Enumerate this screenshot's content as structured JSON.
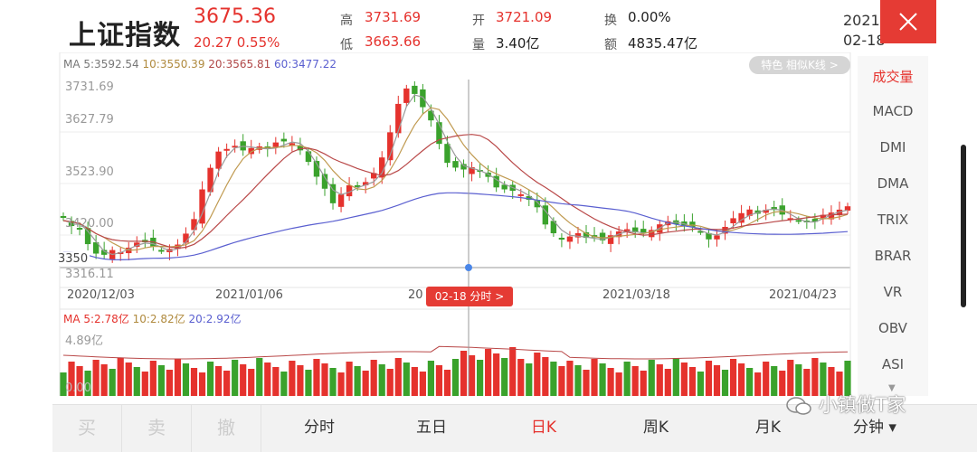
{
  "header": {
    "title": "上证指数",
    "price": "3675.36",
    "change": "20.27  0.55%",
    "high_label": "高",
    "high_value": "3731.69",
    "low_label": "低",
    "low_value": "3663.66",
    "open_label": "开",
    "open_value": "3721.09",
    "volume_label": "量",
    "volume_value": "3.40亿",
    "turnover_label": "换",
    "turnover_value": "0.00%",
    "amount_label": "额",
    "amount_value": "4835.47亿",
    "date_year": "2021",
    "date_md": "02-18"
  },
  "chart": {
    "ma_title": "MA 5:3592.54",
    "ma10": "10:3550.39",
    "ma20": "20:3565.81",
    "ma60": "60:3477.22",
    "feature_pill": "特色 相似K线 >",
    "y_labels": [
      "3731.69",
      "3627.79",
      "3523.90",
      "3420.00",
      "3350",
      "3316.11"
    ],
    "x_labels": [
      "2020/12/03",
      "2021/01/06",
      "2021/03/18",
      "2021/04/23"
    ],
    "x_partial": "20",
    "cursor_label": "02-18 分时 >",
    "vol_ma_title": "MA 5:2.78亿",
    "vol_ma10": "10:2.82亿",
    "vol_ma20": "20:2.92亿",
    "vol_max": "4.89亿",
    "vol_zero": "0.00"
  },
  "chart_data": {
    "type": "candlestick",
    "colors": {
      "up": "#e5322d",
      "down": "#3aa22c",
      "ma5": "#9a9a9a",
      "ma10": "#c09a50",
      "ma20": "#b94848",
      "ma60": "#5a5fd0"
    },
    "y_range": [
      3316.11,
      3731.69
    ],
    "volume_max": 4.89
  },
  "indicators": [
    "成交量",
    "MACD",
    "DMI",
    "DMA",
    "TRIX",
    "BRAR",
    "VR",
    "OBV",
    "ASI"
  ],
  "bottom": {
    "trade": [
      "买",
      "卖",
      "撤"
    ],
    "periods": [
      "分时",
      "五日",
      "日K",
      "周K",
      "月K",
      "分钟 ▾"
    ]
  },
  "watermark": "小镇做T家"
}
